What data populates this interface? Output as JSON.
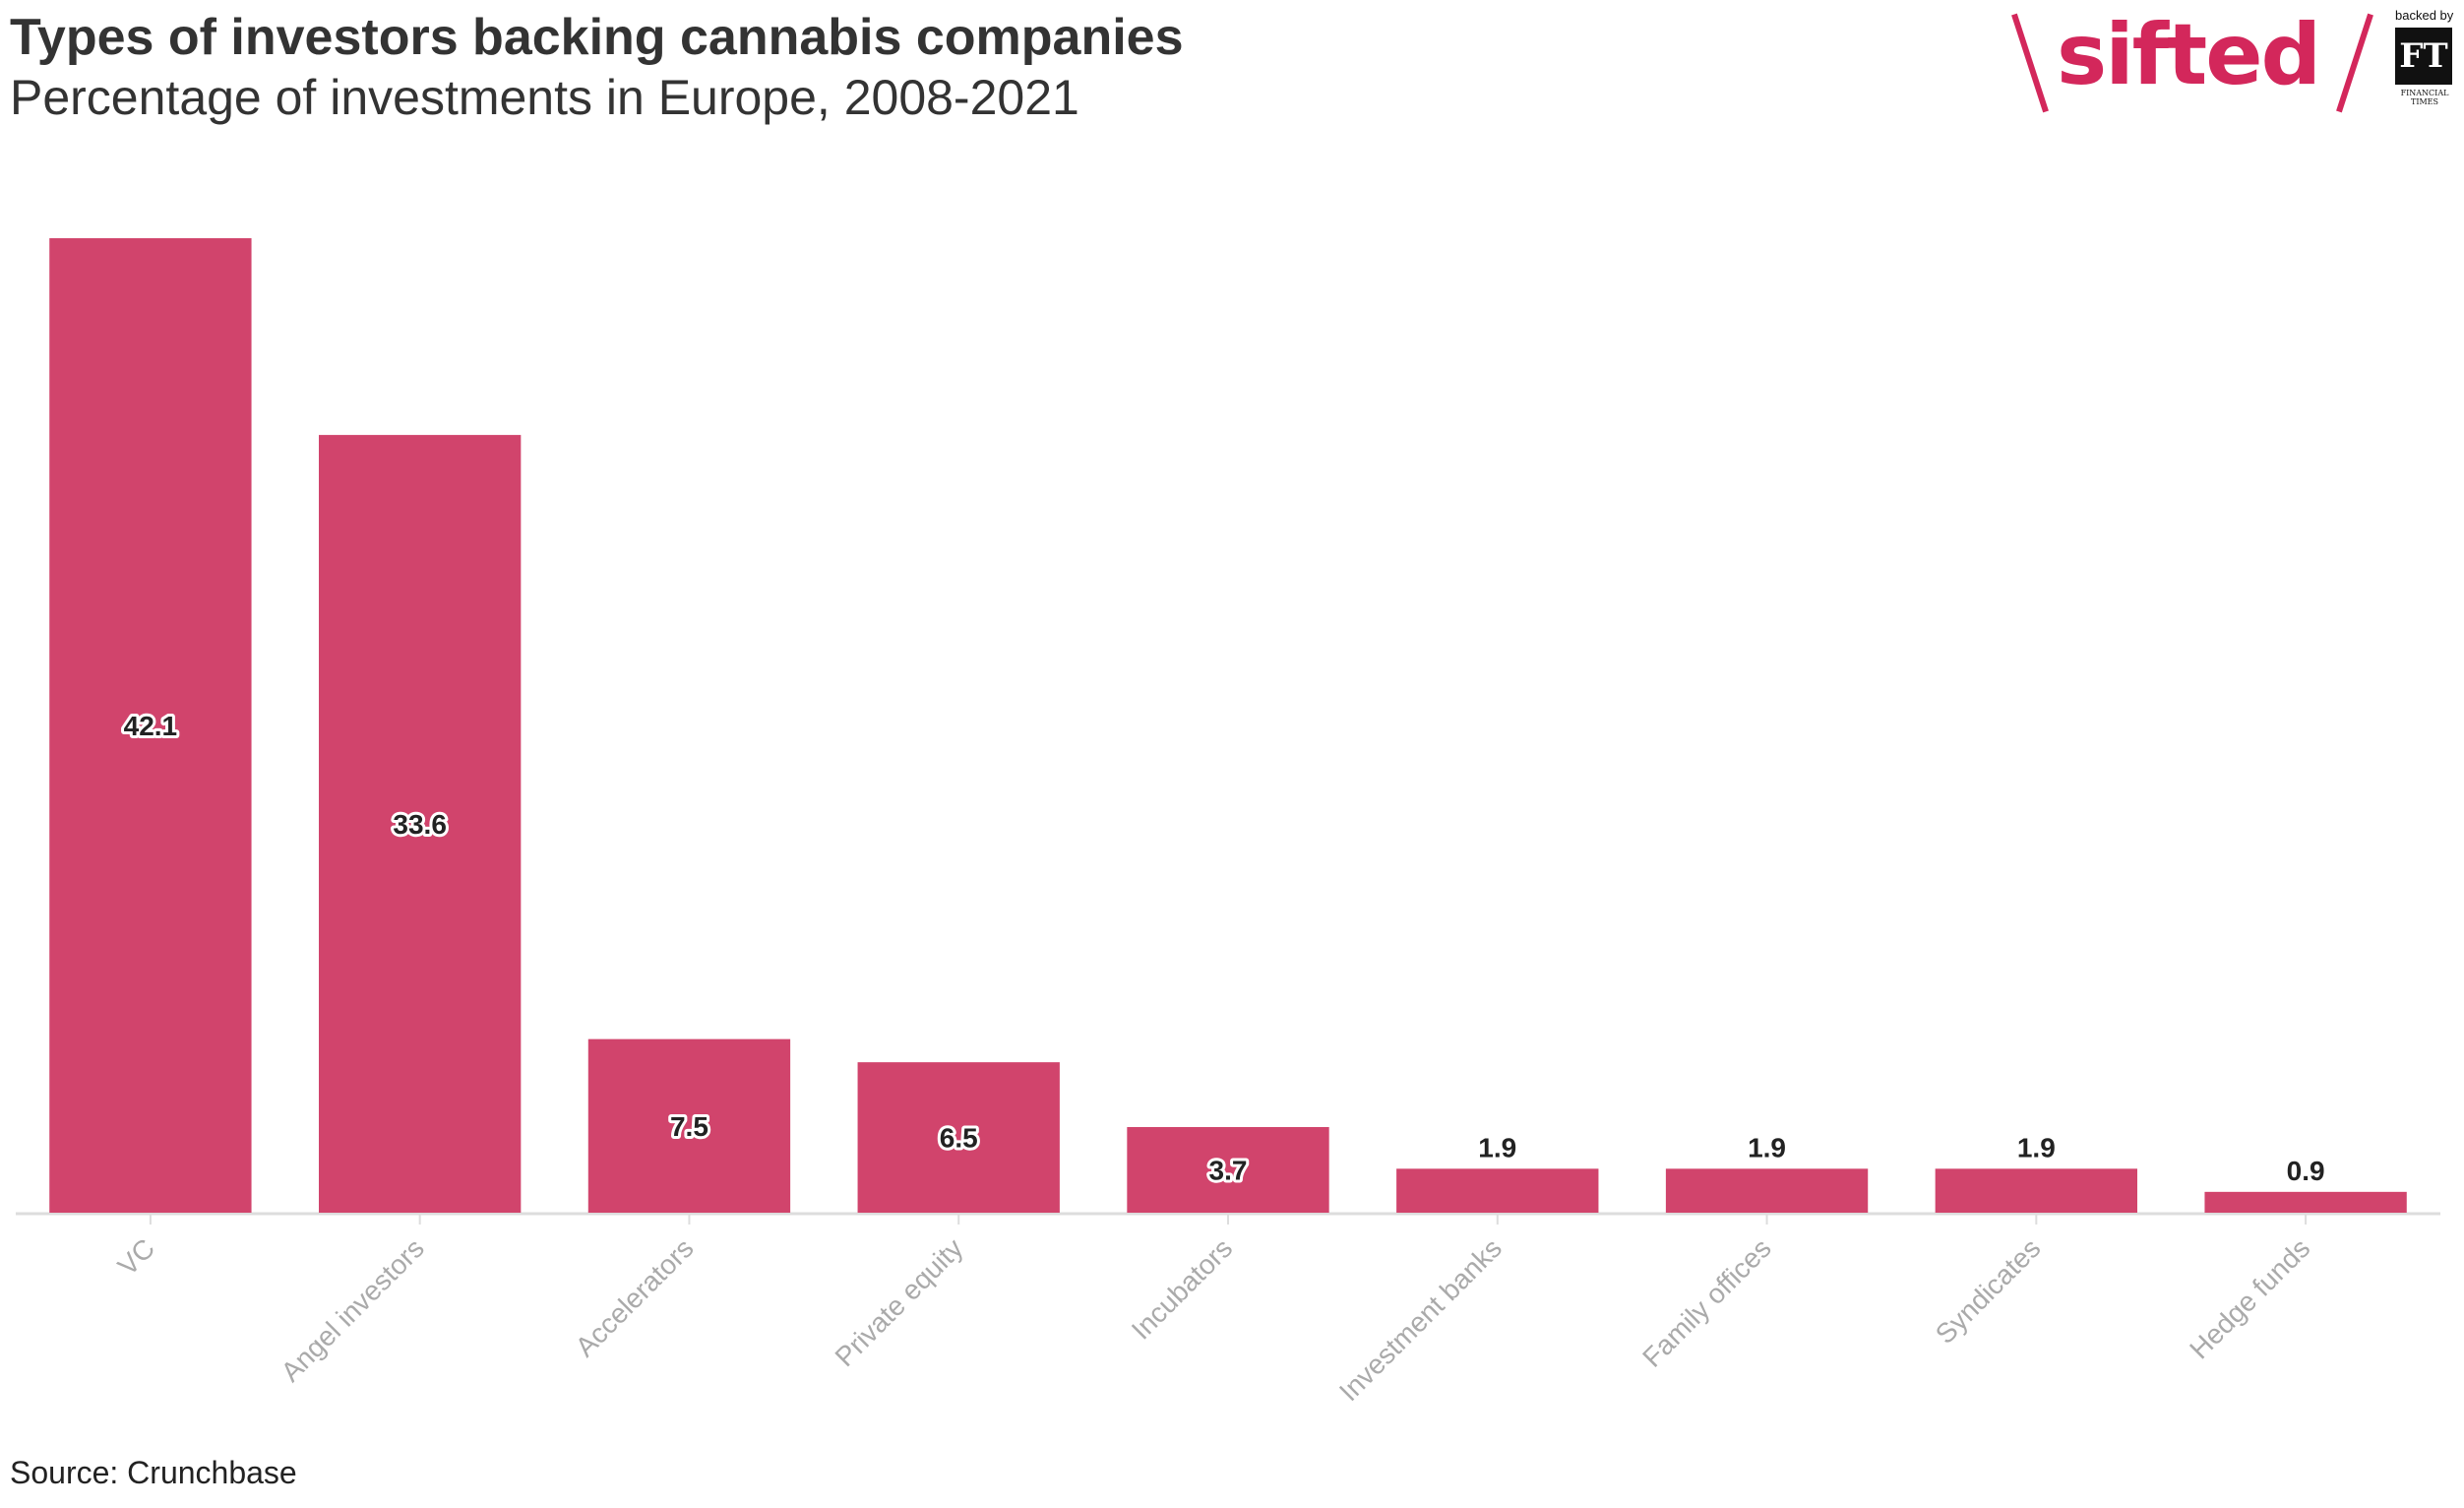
{
  "header": {
    "title": "Types of investors backing cannabis companies",
    "subtitle": "Percentage of investments in Europe, 2008-2021"
  },
  "footer": {
    "source": "Source: Crunchbase"
  },
  "brand": {
    "wordmark": "sifted",
    "backed_by": "backed by",
    "ft_mark": "FT",
    "ft_caption": "FINANCIAL TIMES",
    "color": "#d3275b"
  },
  "chart_data": {
    "type": "bar",
    "categories": [
      "VC",
      "Angel investors",
      "Accelerators",
      "Private equity",
      "Incubators",
      "Investment banks",
      "Family offices",
      "Syndicates",
      "Hedge funds"
    ],
    "values": [
      42.1,
      33.6,
      7.5,
      6.5,
      3.7,
      1.9,
      1.9,
      1.9,
      0.9
    ],
    "data_labels": [
      "42.1",
      "33.6",
      "7.5",
      "6.5",
      "3.7",
      "1.9",
      "1.9",
      "1.9",
      "0.9"
    ],
    "title": "Types of investors backing cannabis companies",
    "subtitle": "Percentage of investments in Europe, 2008-2021",
    "xlabel": "",
    "ylabel": "",
    "ylim": [
      0,
      42.1
    ],
    "grid": false,
    "legend": "none",
    "bar_color": "#d1446c",
    "axis_color": "#dddddd",
    "tick_label_color": "#aaaaaa",
    "x_tick_rotation_deg": -45
  }
}
